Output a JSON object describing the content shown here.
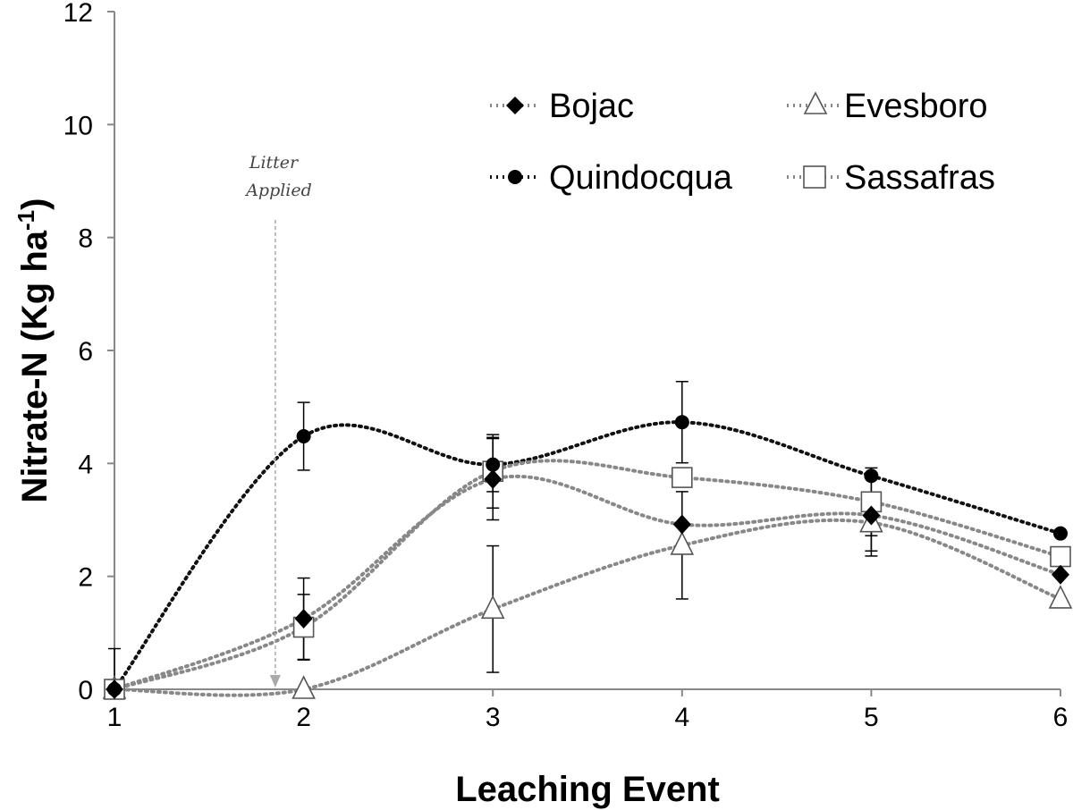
{
  "chart_data": {
    "type": "line",
    "xlabel": "Leaching Event",
    "ylabel": "Nitrate-N (Kg ha",
    "ylabel_sup": "-1",
    "ylabel_close": ")",
    "x": [
      1,
      2,
      3,
      4,
      5,
      6
    ],
    "xlim": [
      1,
      6
    ],
    "ylim": [
      0,
      12
    ],
    "y_ticks": [
      "0",
      "2",
      "4",
      "6",
      "8",
      "10",
      "12"
    ],
    "x_ticks": [
      "1",
      "2",
      "3",
      "4",
      "5",
      "6"
    ],
    "grid": false,
    "legend_position": "top-right",
    "annotation": {
      "line1": "Litter",
      "line2": "Applied",
      "x": 1.85
    },
    "series": [
      {
        "name": "Bojac",
        "marker": "diamond",
        "color": "#888888",
        "values": [
          0,
          1.25,
          3.72,
          2.92,
          3.08,
          2.03
        ],
        "errors": [
          0,
          0.72,
          0.72,
          0,
          0.72,
          0
        ]
      },
      {
        "name": "Evesboro",
        "marker": "triangle",
        "color": "#888888",
        "values": [
          0,
          0,
          1.42,
          2.55,
          2.95,
          1.6
        ],
        "errors": [
          0,
          0,
          1.12,
          0.95,
          0.5,
          0
        ]
      },
      {
        "name": "Quindocqua",
        "marker": "circle",
        "color": "#111111",
        "values": [
          0,
          4.48,
          3.98,
          4.73,
          3.78,
          2.76
        ],
        "errors": [
          0.72,
          0.6,
          0.48,
          0.72,
          0,
          0
        ]
      },
      {
        "name": "Sassafras",
        "marker": "square",
        "color": "#888888",
        "values": [
          0,
          1.1,
          3.86,
          3.75,
          3.32,
          2.35
        ],
        "errors": [
          0,
          0.58,
          0.65,
          0,
          0.6,
          0
        ]
      }
    ]
  }
}
